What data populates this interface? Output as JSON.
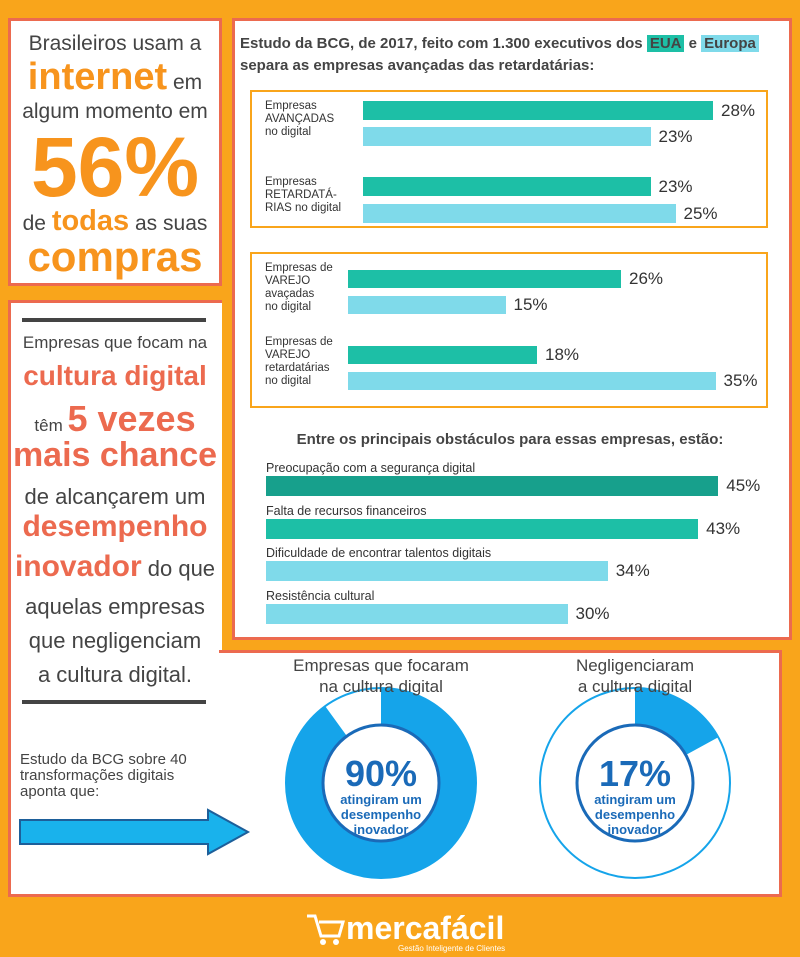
{
  "intro": {
    "parts": [
      "Brasileiros usam a",
      "internet",
      "em",
      "algum momento em",
      "56%",
      "de",
      "todas",
      "as suas",
      "compras"
    ]
  },
  "focus": {
    "parts": [
      "Empresas que focam na",
      "cultura digital",
      "têm",
      "5 vezes",
      "mais chance",
      "de alcançarem um",
      "desempenho",
      "inovador",
      "do que",
      "aquelas empresas",
      "que negligenciam",
      "a cultura digital."
    ]
  },
  "study_note": "Estudo da BCG sobre 40 transformações digitais aponta que:",
  "header": {
    "line1": "Estudo da BCG, de 2017, feito com 1.300 executivos dos",
    "and": "e",
    "line2": "separa as empresas avançadas das retardatárias:"
  },
  "chart_data": [
    {
      "type": "bar",
      "orientation": "horizontal",
      "categories": [
        "Empresas\nAVANÇADAS\nno digital",
        "Empresas\nRETARDATÁ-\nRIAS no digital"
      ],
      "series": [
        {
          "name": "EUA",
          "color": "#1dbfa6",
          "values": [
            28,
            23
          ],
          "value_labels": [
            "28%",
            "23%"
          ]
        },
        {
          "name": "Europa",
          "color": "#7fdaea",
          "values": [
            23,
            25
          ],
          "value_labels": [
            "23%",
            "25%"
          ]
        }
      ]
    },
    {
      "type": "bar",
      "orientation": "horizontal",
      "categories": [
        "Empresas de\nVAREJO\navaçadas\nno digital",
        "Empresas de\nVAREJO\nretardatárias\nno digital"
      ],
      "series": [
        {
          "color": "#1dbfa6",
          "values": [
            26,
            18
          ],
          "value_labels": [
            "26%",
            "18%"
          ]
        },
        {
          "color": "#7fdaea",
          "values": [
            15,
            35
          ],
          "value_labels": [
            "15%",
            "35%"
          ]
        }
      ]
    },
    {
      "type": "bar",
      "orientation": "horizontal",
      "title": "Entre os principais obstáculos para essas empresas, estão:",
      "categories": [
        "Preocupação com a segurança digital",
        "Falta de recursos financeiros",
        "Dificuldade de encontrar talentos digitais",
        "Resistência cultural"
      ],
      "values": [
        45,
        43,
        34,
        30
      ],
      "value_labels": [
        "45%",
        "43%",
        "34%",
        "30%"
      ],
      "colors": [
        "#17a08c",
        "#1dbfa6",
        "#7fdaea",
        "#7fdaea"
      ]
    },
    {
      "type": "donut",
      "title": "Empresas que focaram\nna cultura digital",
      "values": [
        90
      ],
      "value_labels": [
        "90%"
      ],
      "caption": "atingiram um\ndesempenho\ninovador",
      "color": "#15a4ea"
    },
    {
      "type": "donut",
      "title": "Negligenciaram\na cultura digital",
      "values": [
        17
      ],
      "value_labels": [
        "17%"
      ],
      "caption": "atingiram um\ndesempenho\ninovador",
      "color": "#15a4ea"
    }
  ],
  "footer": {
    "brand": "mercafácil",
    "tagline": "Gestão Inteligente de Clientes"
  }
}
